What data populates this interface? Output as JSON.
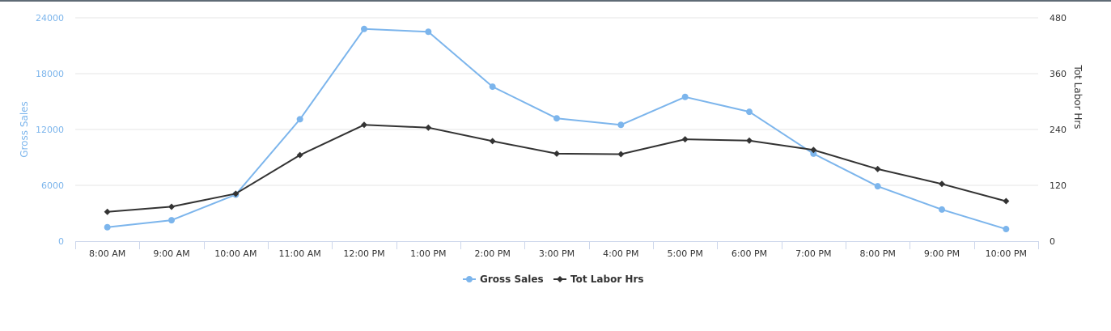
{
  "chart_data": {
    "type": "line",
    "title": "",
    "categories": [
      "8:00 AM",
      "9:00 AM",
      "10:00 AM",
      "11:00 AM",
      "12:00 PM",
      "1:00 PM",
      "2:00 PM",
      "3:00 PM",
      "4:00 PM",
      "5:00 PM",
      "6:00 PM",
      "7:00 PM",
      "8:00 PM",
      "9:00 PM",
      "10:00 PM"
    ],
    "series": [
      {
        "name": "Gross Sales",
        "axis": "left",
        "color": "#7cb5ec",
        "marker": "circle",
        "values": [
          1500,
          2250,
          5000,
          13100,
          22800,
          22500,
          16600,
          13200,
          12500,
          15500,
          13900,
          9400,
          5900,
          3400,
          1300
        ]
      },
      {
        "name": "Tot Labor Hrs",
        "axis": "right",
        "color": "#333333",
        "marker": "diamond",
        "values": [
          63,
          74,
          102,
          185,
          250,
          244,
          215,
          188,
          187,
          219,
          216,
          196,
          155,
          123,
          86
        ]
      }
    ],
    "yleft": {
      "label": "Gross Sales",
      "ticks": [
        "0",
        "6000",
        "12000",
        "18000",
        "24000"
      ],
      "ylim": [
        0,
        24000
      ],
      "color": "#7cb5ec"
    },
    "yright": {
      "label": "Tot Labor Hrs",
      "ticks": [
        "0",
        "120",
        "240",
        "360",
        "480"
      ],
      "ylim": [
        0,
        480
      ],
      "color": "#333333"
    },
    "grid": true,
    "legend": "bottom-center"
  }
}
